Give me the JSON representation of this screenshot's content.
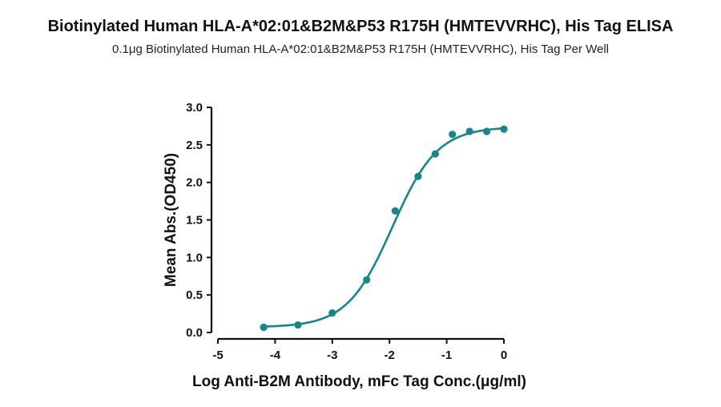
{
  "title": "Biotinylated Human HLA-A*02:01&B2M&P53 R175H (HMTEVVRHC), His Tag ELISA",
  "subtitle": "0.1μg Biotinylated Human HLA-A*02:01&B2M&P53 R175H (HMTEVVRHC), His Tag Per Well",
  "chart_data": {
    "type": "scatter",
    "xlabel": "Log  Anti-B2M Antibody, mFc Tag Conc.(μg/ml)",
    "ylabel": "Mean Abs.(OD450)",
    "xlim": [
      -5,
      0
    ],
    "ylim": [
      0,
      3.0
    ],
    "xticks": [
      "-5",
      "-4",
      "-3",
      "-2",
      "-1",
      "0"
    ],
    "yticks": [
      "0.0",
      "0.5",
      "1.0",
      "1.5",
      "2.0",
      "2.5",
      "3.0"
    ],
    "color": "#17858a",
    "series": [
      {
        "points": [
          {
            "x": -4.2,
            "y": 0.07
          },
          {
            "x": -3.6,
            "y": 0.1
          },
          {
            "x": -3.0,
            "y": 0.26
          },
          {
            "x": -2.4,
            "y": 0.7
          },
          {
            "x": -1.9,
            "y": 1.62
          },
          {
            "x": -1.5,
            "y": 2.08
          },
          {
            "x": -1.2,
            "y": 2.38
          },
          {
            "x": -0.9,
            "y": 2.64
          },
          {
            "x": -0.6,
            "y": 2.68
          },
          {
            "x": -0.3,
            "y": 2.68
          },
          {
            "x": 0.0,
            "y": 2.71
          }
        ]
      }
    ],
    "fit": {
      "bottom": 0.07,
      "top": 2.74,
      "log_ec50": -1.95,
      "hill_slope": 1.1
    }
  }
}
